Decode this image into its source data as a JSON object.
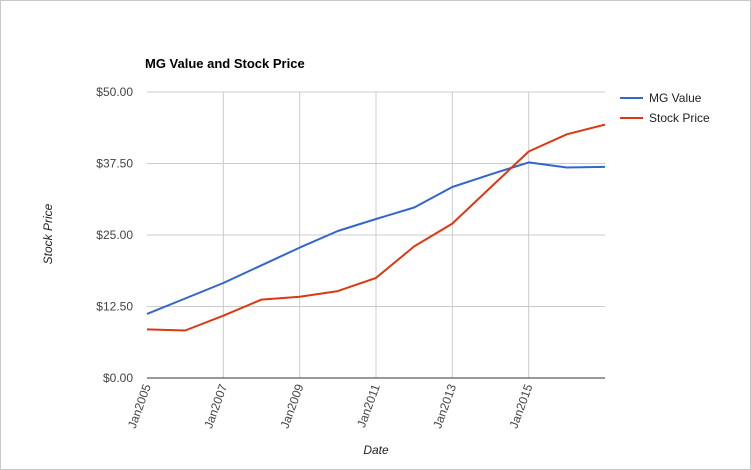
{
  "chart_data": {
    "type": "line",
    "title": "MG Value and Stock Price",
    "xlabel": "Date",
    "ylabel": "Stock Price",
    "ylim": [
      0,
      50
    ],
    "yticks": [
      0,
      12.5,
      25,
      37.5,
      50
    ],
    "ytick_labels": [
      "$0.00",
      "$12.50",
      "$25.00",
      "$37.50",
      "$50.00"
    ],
    "xlim": [
      2005,
      2017
    ],
    "xticks": [
      2005,
      2007,
      2009,
      2011,
      2013,
      2015
    ],
    "xtick_labels": [
      "Jan2005",
      "Jan2007",
      "Jan2009",
      "Jan2011",
      "Jan2013",
      "Jan2015"
    ],
    "grid": true,
    "legend": "right",
    "x": [
      2005,
      2006,
      2007,
      2008,
      2009,
      2010,
      2011,
      2012,
      2013,
      2014,
      2015,
      2016,
      2017
    ],
    "series": [
      {
        "name": "MG Value",
        "color": "#3366cc",
        "values": [
          11.2,
          13.9,
          16.6,
          19.7,
          22.8,
          25.7,
          27.8,
          29.8,
          33.4,
          35.6,
          37.7,
          36.8,
          36.9
        ]
      },
      {
        "name": "Stock Price",
        "color": "#dc3912",
        "values": [
          8.5,
          8.3,
          10.9,
          13.7,
          14.2,
          15.2,
          17.5,
          23.0,
          27.0,
          33.3,
          39.6,
          42.6,
          44.3
        ]
      }
    ]
  }
}
